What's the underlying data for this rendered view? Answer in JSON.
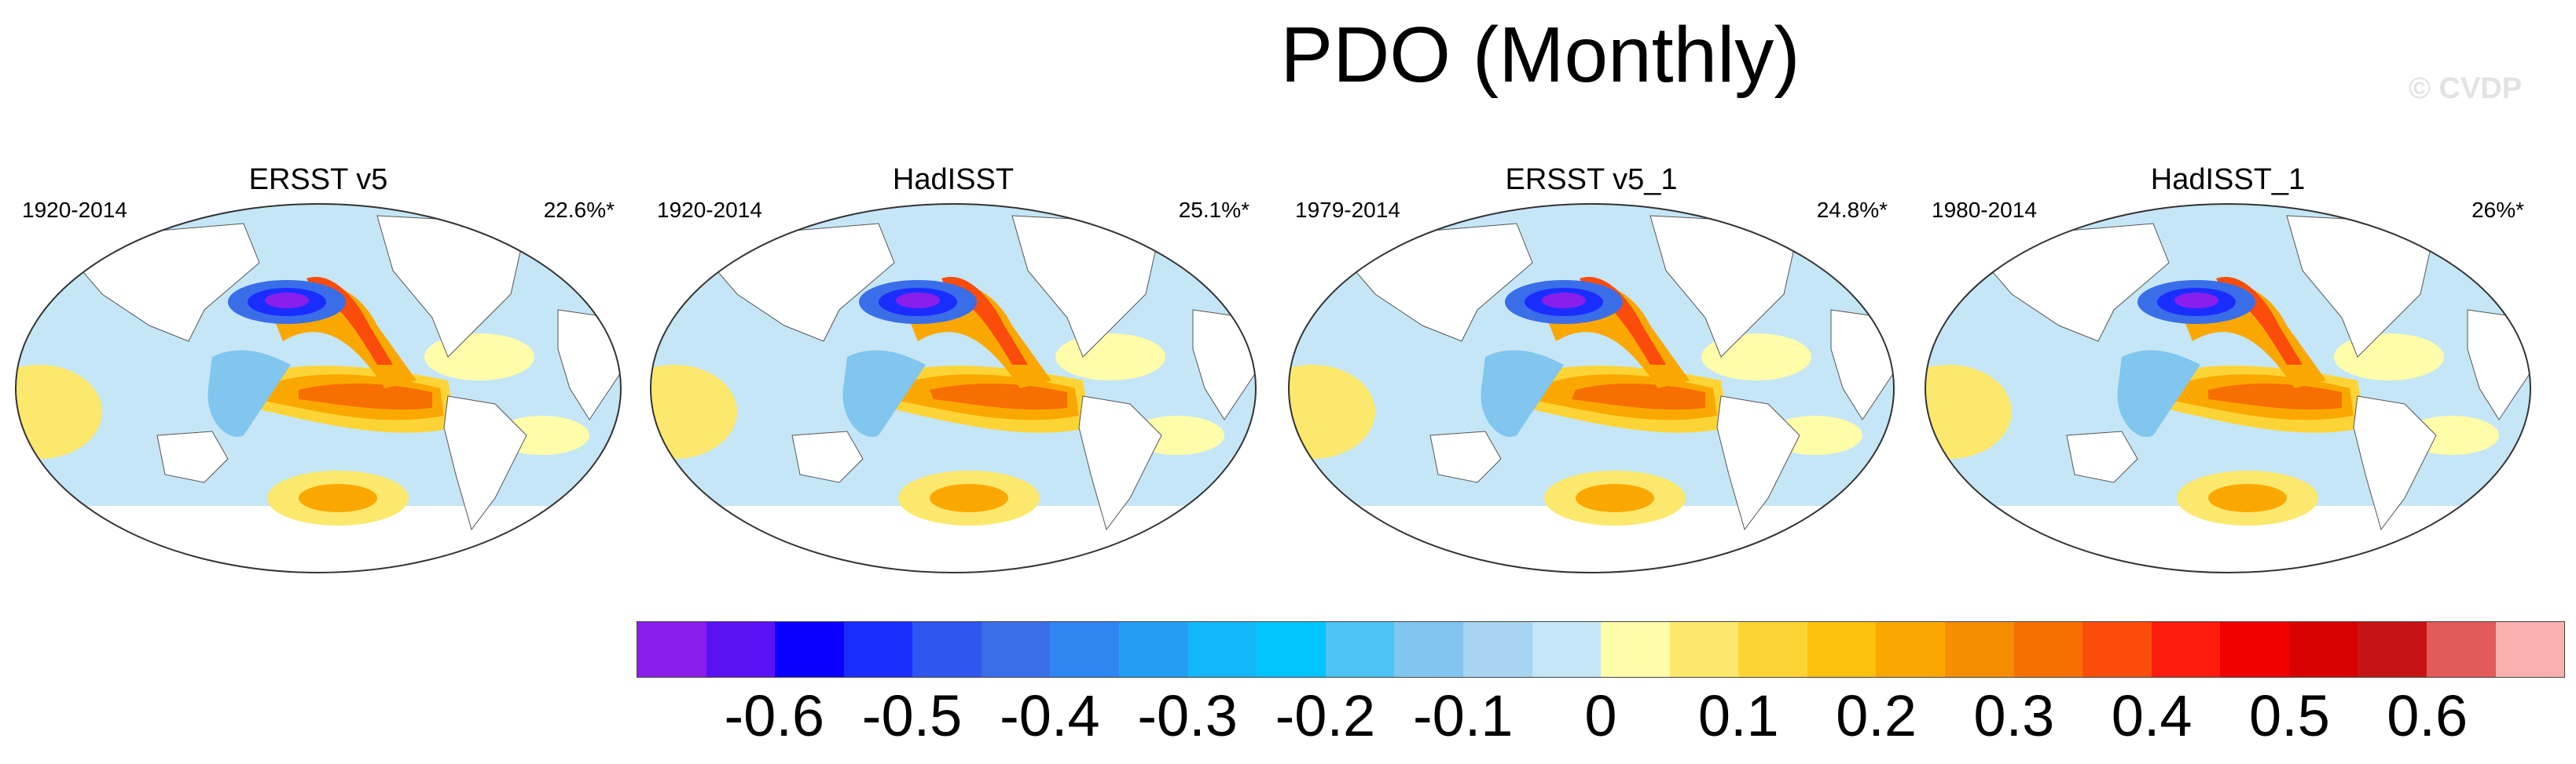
{
  "title": "PDO (Monthly)",
  "watermark": "© CVDP",
  "panels": [
    {
      "title": "ERSST v5",
      "period": "1920-2014",
      "percent": "22.6%*"
    },
    {
      "title": "HadISST",
      "period": "1920-2014",
      "percent": "25.1%*"
    },
    {
      "title": "ERSST v5_1",
      "period": "1979-2014",
      "percent": "24.8%*"
    },
    {
      "title": "HadISST_1",
      "period": "1980-2014",
      "percent": "26%*"
    }
  ],
  "colorbar": {
    "colors": [
      "#8a1eeb",
      "#5a12f5",
      "#0a00ff",
      "#1a2dff",
      "#2f56ef",
      "#3a6ee8",
      "#2f85f2",
      "#229ff5",
      "#14b6fa",
      "#00c4ff",
      "#4cc3f5",
      "#80c6ee",
      "#a6d4f1",
      "#c5e6f6",
      "#fffcaa",
      "#fce86c",
      "#fdd435",
      "#fcc20c",
      "#faa800",
      "#f78d00",
      "#f76f00",
      "#fb4c0c",
      "#fb1c0c",
      "#f00000",
      "#d80000",
      "#c61414",
      "#e25a5a",
      "#fbb0b0"
    ],
    "labels": [
      "-0.6",
      "-0.5",
      "-0.4",
      "-0.3",
      "-0.2",
      "-0.1",
      "0",
      "0.1",
      "0.2",
      "0.3",
      "0.4",
      "0.5",
      "0.6"
    ],
    "label_values": [
      -0.6,
      -0.5,
      -0.4,
      -0.3,
      -0.2,
      -0.1,
      0,
      0.1,
      0.2,
      0.3,
      0.4,
      0.5,
      0.6
    ]
  }
}
